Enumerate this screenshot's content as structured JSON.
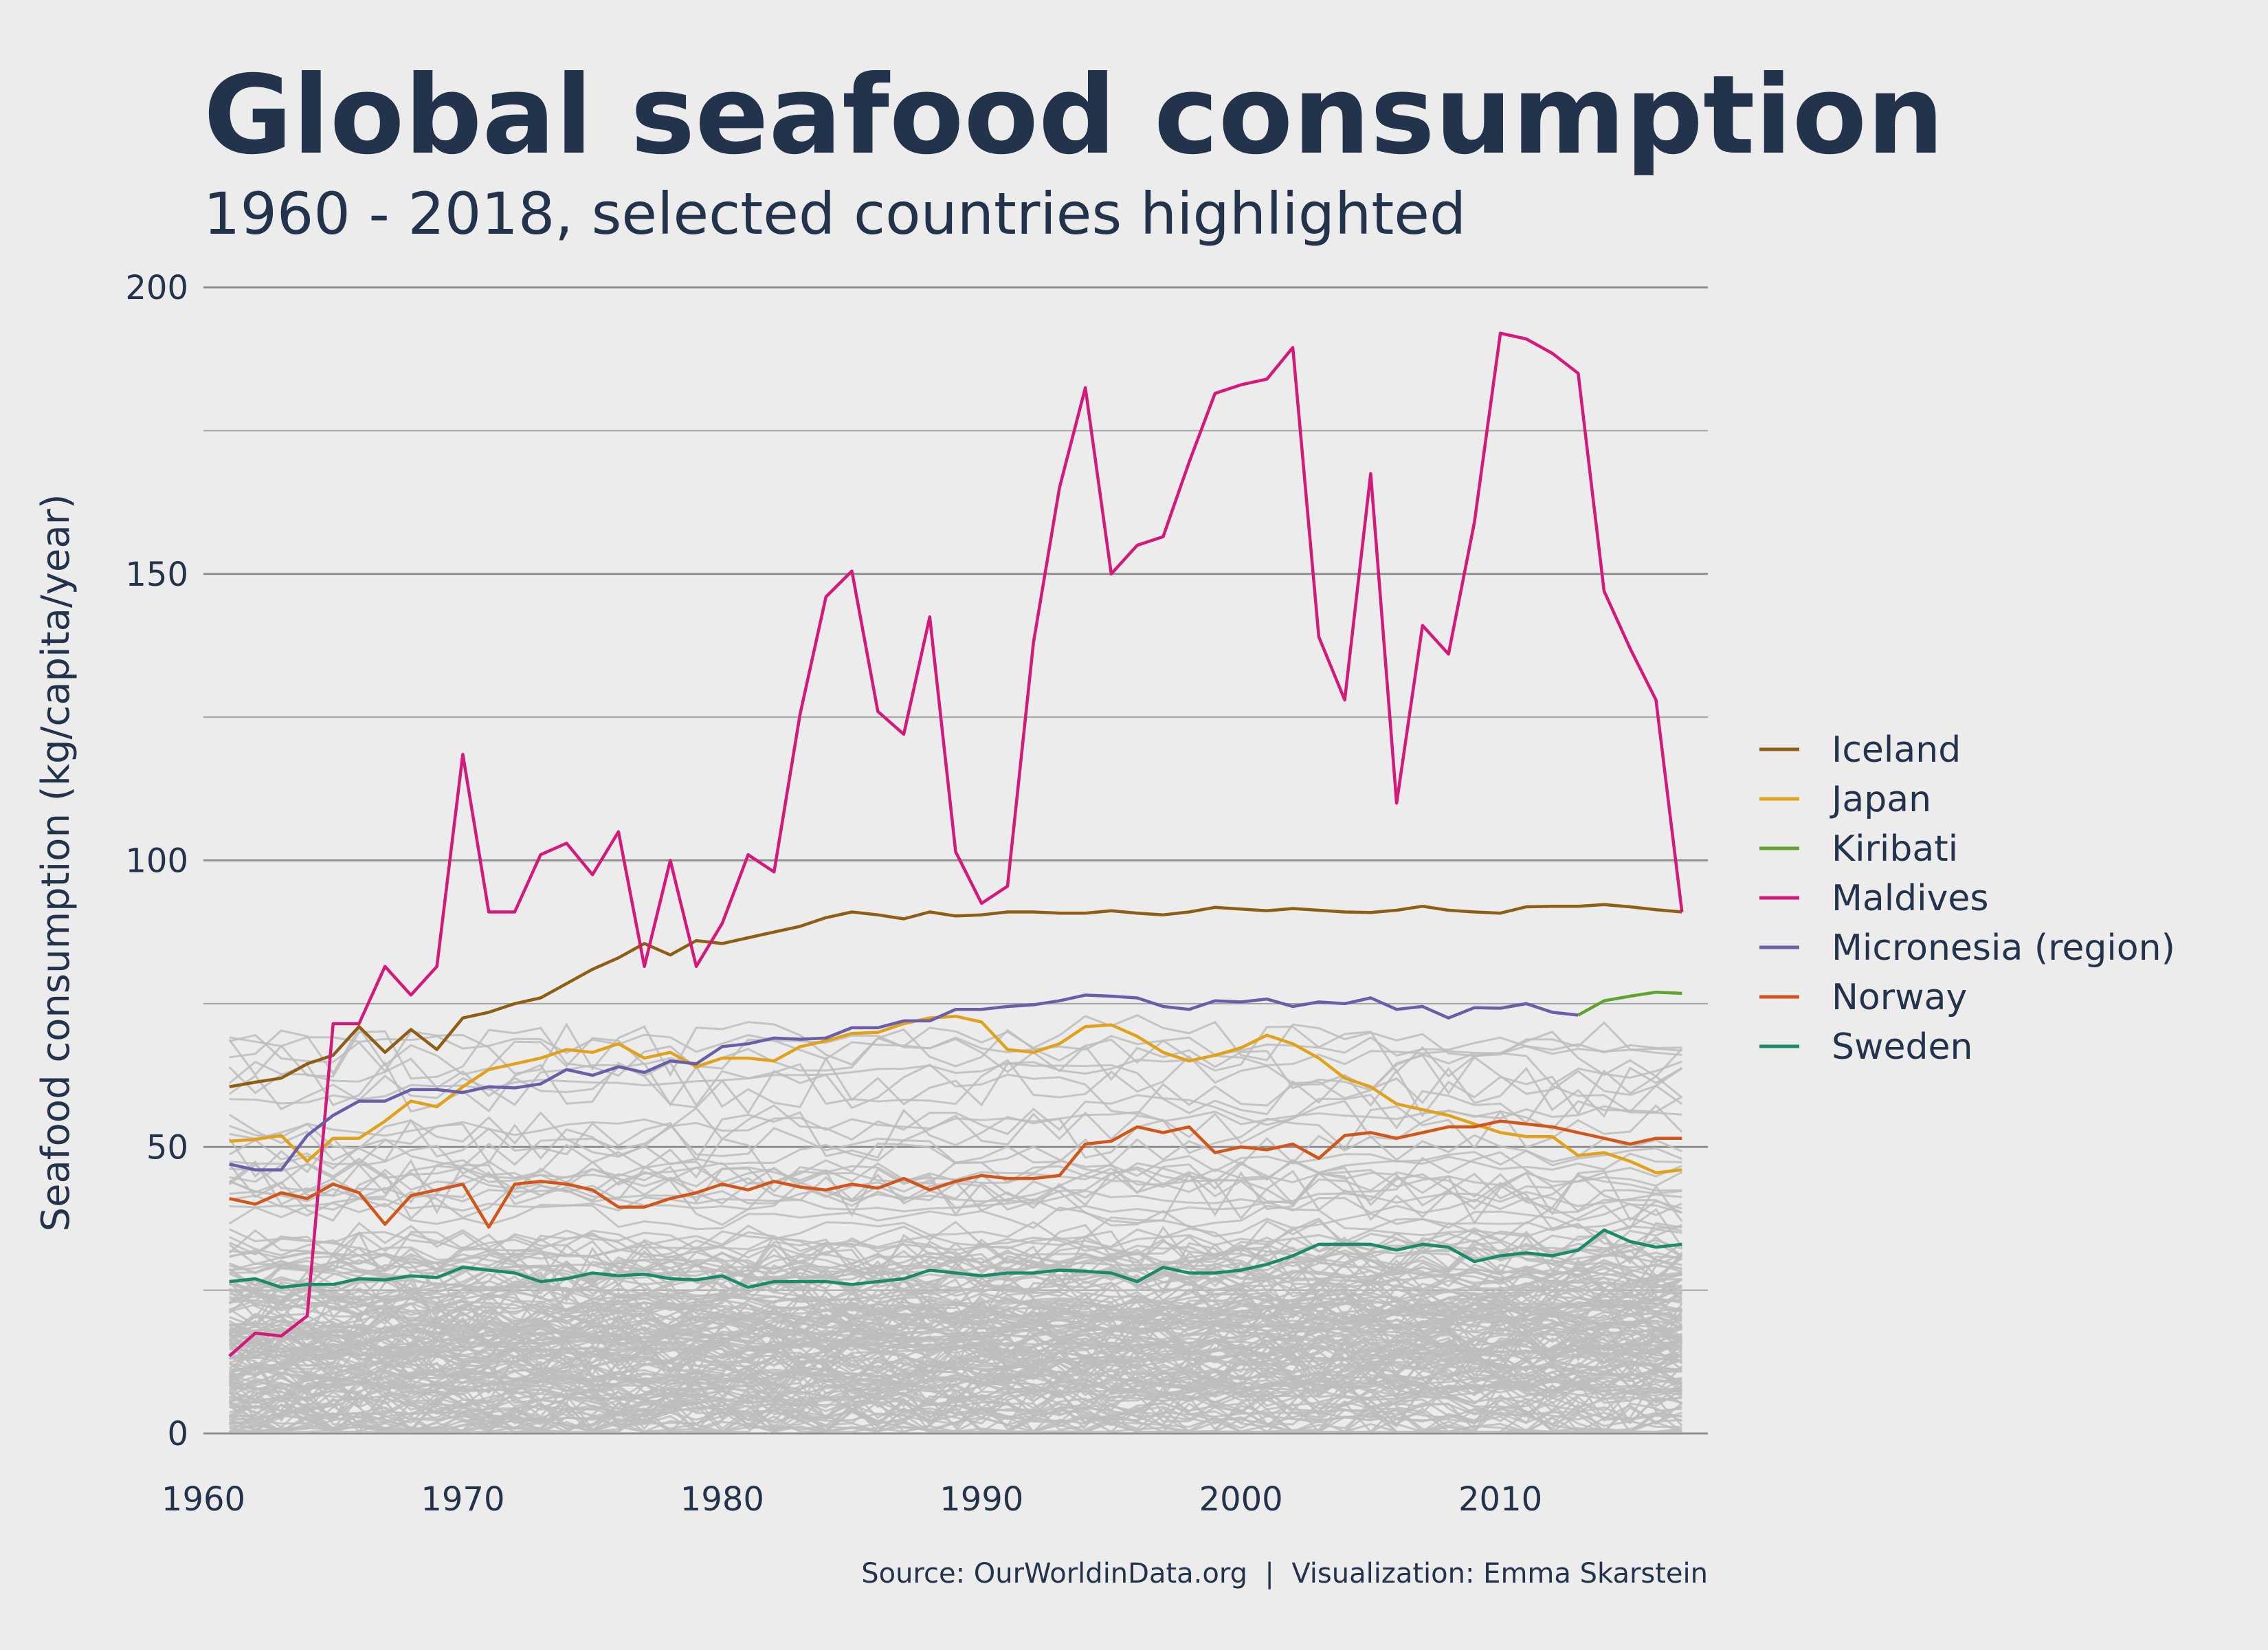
{
  "chart_data": {
    "type": "line",
    "title": "Global seafood consumption",
    "subtitle": "1960 - 2018, selected countries highlighted",
    "ylabel": "Seafood consumption (kg/capita/year)",
    "xlabel": "",
    "source": "Source: OurWorldinData.org  |  Visualization: Emma Skarstein",
    "xlim": [
      1960,
      2018
    ],
    "ylim": [
      0,
      200
    ],
    "x_ticks": [
      "1960",
      "1970",
      "1980",
      "1990",
      "2000",
      "2010"
    ],
    "y_ticks": [
      "0",
      "50",
      "100",
      "150",
      "200"
    ],
    "grid": true,
    "legend_position": "right",
    "background_series_color": "#bdbdbd",
    "background_series_count": 170,
    "series": [
      {
        "name": "Iceland",
        "color": "#8f5e15",
        "x": [
          1961,
          1962,
          1963,
          1964,
          1965,
          1966,
          1967,
          1968,
          1969,
          1970,
          1971,
          1972,
          1973,
          1974,
          1975,
          1976,
          1977,
          1978,
          1979,
          1980,
          1981,
          1982,
          1983,
          1984,
          1985,
          1986,
          1987,
          1988,
          1989,
          1990,
          1991,
          1992,
          1993,
          1994,
          1995,
          1996,
          1997,
          1998,
          1999,
          2000,
          2001,
          2002,
          2003,
          2004,
          2005,
          2006,
          2007,
          2008,
          2009,
          2010,
          2011,
          2012,
          2013,
          2014,
          2015,
          2016,
          2017
        ],
        "values": [
          60.5,
          61.3,
          62.0,
          64.5,
          66.0,
          71.0,
          66.5,
          70.5,
          67.0,
          72.5,
          73.5,
          75.0,
          76.0,
          78.5,
          81.0,
          83.0,
          85.5,
          83.5,
          86.0,
          85.5,
          86.5,
          87.5,
          88.5,
          90.0,
          91.0,
          90.5,
          89.8,
          91.0,
          90.3,
          90.5,
          91.0,
          91.0,
          90.8,
          90.8,
          91.2,
          90.8,
          90.5,
          91.0,
          91.8,
          91.5,
          91.2,
          91.6,
          91.3,
          91.0,
          90.9,
          91.3,
          92.0,
          91.3,
          91.0,
          90.8,
          91.9,
          92.0,
          92.0,
          92.3,
          91.9,
          91.4,
          91.0
        ]
      },
      {
        "name": "Japan",
        "color": "#e0a21a",
        "x": [
          1961,
          1962,
          1963,
          1964,
          1965,
          1966,
          1967,
          1968,
          1969,
          1970,
          1971,
          1972,
          1973,
          1974,
          1975,
          1976,
          1977,
          1978,
          1979,
          1980,
          1981,
          1982,
          1983,
          1984,
          1985,
          1986,
          1987,
          1988,
          1989,
          1990,
          1991,
          1992,
          1993,
          1994,
          1995,
          1996,
          1997,
          1998,
          1999,
          2000,
          2001,
          2002,
          2003,
          2004,
          2005,
          2006,
          2007,
          2008,
          2009,
          2010,
          2011,
          2012,
          2013,
          2014,
          2015,
          2016,
          2017
        ],
        "values": [
          51.0,
          51.3,
          52.0,
          47.5,
          51.5,
          51.5,
          54.5,
          58.0,
          57.0,
          60.5,
          63.5,
          64.5,
          65.5,
          67.0,
          66.5,
          68.0,
          65.5,
          66.5,
          64.0,
          65.5,
          65.5,
          65.0,
          67.5,
          68.5,
          69.8,
          70.0,
          71.5,
          72.5,
          72.8,
          71.8,
          67.0,
          66.5,
          68.0,
          71.0,
          71.3,
          69.3,
          66.5,
          65.0,
          66.0,
          67.3,
          69.5,
          68.0,
          65.5,
          62.0,
          60.5,
          57.5,
          56.5,
          55.5,
          54.0,
          52.5,
          51.8,
          51.8,
          48.5,
          49.0,
          47.5,
          45.5,
          46.0
        ]
      },
      {
        "name": "Kiribati",
        "color": "#60a32e",
        "x": [
          2013,
          2014,
          2015,
          2016,
          2017
        ],
        "values": [
          73.0,
          75.5,
          76.3,
          77.0,
          76.8
        ]
      },
      {
        "name": "Maldives",
        "color": "#d4197b",
        "x": [
          1961,
          1962,
          1963,
          1964,
          1965,
          1966,
          1967,
          1968,
          1969,
          1970,
          1971,
          1972,
          1973,
          1974,
          1975,
          1976,
          1977,
          1978,
          1979,
          1980,
          1981,
          1982,
          1983,
          1984,
          1985,
          1986,
          1987,
          1988,
          1989,
          1990,
          1991,
          1992,
          1993,
          1994,
          1995,
          1996,
          1997,
          1998,
          1999,
          2000,
          2001,
          2002,
          2003,
          2004,
          2005,
          2006,
          2007,
          2008,
          2009,
          2010,
          2011,
          2012,
          2013,
          2014,
          2015,
          2016,
          2017
        ],
        "values": [
          13.5,
          17.5,
          17.0,
          20.5,
          71.5,
          71.5,
          81.5,
          76.5,
          81.5,
          118.5,
          91.0,
          91.0,
          101.0,
          103.0,
          97.5,
          105.0,
          81.5,
          100.0,
          81.5,
          89.0,
          101.0,
          98.0,
          125.5,
          146.0,
          150.5,
          126.0,
          122.0,
          142.5,
          101.5,
          92.5,
          95.5,
          138.0,
          165.0,
          182.5,
          150.0,
          155.0,
          156.5,
          169.5,
          181.5,
          183.0,
          184.0,
          189.5,
          139.0,
          128.0,
          167.5,
          110.0,
          141.0,
          136.0,
          159.0,
          192.0,
          191.0,
          188.5,
          185.0,
          147.0,
          137.0,
          128.0,
          91.0
        ]
      },
      {
        "name": "Micronesia (region)",
        "color": "#6a5ea8",
        "x": [
          1961,
          1962,
          1963,
          1964,
          1965,
          1966,
          1967,
          1968,
          1969,
          1970,
          1971,
          1972,
          1973,
          1974,
          1975,
          1976,
          1977,
          1978,
          1979,
          1980,
          1981,
          1982,
          1983,
          1984,
          1985,
          1986,
          1987,
          1988,
          1989,
          1990,
          1991,
          1992,
          1993,
          1994,
          1995,
          1996,
          1997,
          1998,
          1999,
          2000,
          2001,
          2002,
          2003,
          2004,
          2005,
          2006,
          2007,
          2008,
          2009,
          2010,
          2011,
          2012,
          2013
        ],
        "values": [
          47.0,
          46.0,
          46.0,
          52.0,
          55.5,
          58.0,
          58.0,
          60.0,
          60.0,
          59.5,
          60.5,
          60.3,
          61.0,
          63.5,
          62.5,
          64.0,
          63.0,
          65.0,
          64.5,
          67.5,
          68.0,
          69.0,
          68.8,
          69.0,
          70.8,
          70.8,
          72.0,
          72.0,
          74.0,
          74.0,
          74.5,
          74.8,
          75.5,
          76.5,
          76.3,
          76.0,
          74.5,
          74.0,
          75.5,
          75.3,
          75.8,
          74.5,
          75.3,
          75.0,
          76.0,
          74.0,
          74.5,
          72.5,
          74.3,
          74.2,
          75.0,
          73.5,
          73.0
        ]
      },
      {
        "name": "Norway",
        "color": "#d2561a",
        "x": [
          1961,
          1962,
          1963,
          1964,
          1965,
          1966,
          1967,
          1968,
          1969,
          1970,
          1971,
          1972,
          1973,
          1974,
          1975,
          1976,
          1977,
          1978,
          1979,
          1980,
          1981,
          1982,
          1983,
          1984,
          1985,
          1986,
          1987,
          1988,
          1989,
          1990,
          1991,
          1992,
          1993,
          1994,
          1995,
          1996,
          1997,
          1998,
          1999,
          2000,
          2001,
          2002,
          2003,
          2004,
          2005,
          2006,
          2007,
          2008,
          2009,
          2010,
          2011,
          2012,
          2013,
          2014,
          2015,
          2016,
          2017
        ],
        "values": [
          41.0,
          40.0,
          42.0,
          41.0,
          43.5,
          42.0,
          36.5,
          41.5,
          42.5,
          43.5,
          36.0,
          43.5,
          44.0,
          43.5,
          42.5,
          39.5,
          39.5,
          41.0,
          42.0,
          43.5,
          42.5,
          44.0,
          43.0,
          42.5,
          43.5,
          42.8,
          44.5,
          42.5,
          44.0,
          45.0,
          44.5,
          44.5,
          45.0,
          50.5,
          51.0,
          53.5,
          52.5,
          53.5,
          49.0,
          50.0,
          49.5,
          50.5,
          48.0,
          52.0,
          52.5,
          51.5,
          52.5,
          53.5,
          53.5,
          54.5,
          54.0,
          53.5,
          52.5,
          51.5,
          50.5,
          51.5,
          51.5
        ]
      },
      {
        "name": "Sweden",
        "color": "#1a8a6a",
        "x": [
          1961,
          1962,
          1963,
          1964,
          1965,
          1966,
          1967,
          1968,
          1969,
          1970,
          1971,
          1972,
          1973,
          1974,
          1975,
          1976,
          1977,
          1978,
          1979,
          1980,
          1981,
          1982,
          1983,
          1984,
          1985,
          1986,
          1987,
          1988,
          1989,
          1990,
          1991,
          1992,
          1993,
          1994,
          1995,
          1996,
          1997,
          1998,
          1999,
          2000,
          2001,
          2002,
          2003,
          2004,
          2005,
          2006,
          2007,
          2008,
          2009,
          2010,
          2011,
          2012,
          2013,
          2014,
          2015,
          2016,
          2017
        ],
        "values": [
          26.5,
          27.0,
          25.5,
          26.0,
          26.0,
          27.0,
          26.8,
          27.5,
          27.2,
          29.0,
          28.5,
          28.0,
          26.5,
          27.0,
          28.0,
          27.5,
          27.8,
          27.0,
          26.8,
          27.5,
          25.5,
          26.5,
          26.5,
          26.5,
          26.0,
          26.5,
          27.0,
          28.5,
          28.0,
          27.5,
          28.0,
          28.0,
          28.5,
          28.3,
          28.0,
          26.5,
          29.0,
          28.0,
          28.0,
          28.5,
          29.5,
          31.0,
          33.0,
          33.0,
          33.0,
          32.0,
          33.0,
          32.5,
          30.0,
          31.0,
          31.5,
          31.0,
          32.0,
          35.5,
          33.5,
          32.5,
          33.0
        ]
      }
    ]
  }
}
